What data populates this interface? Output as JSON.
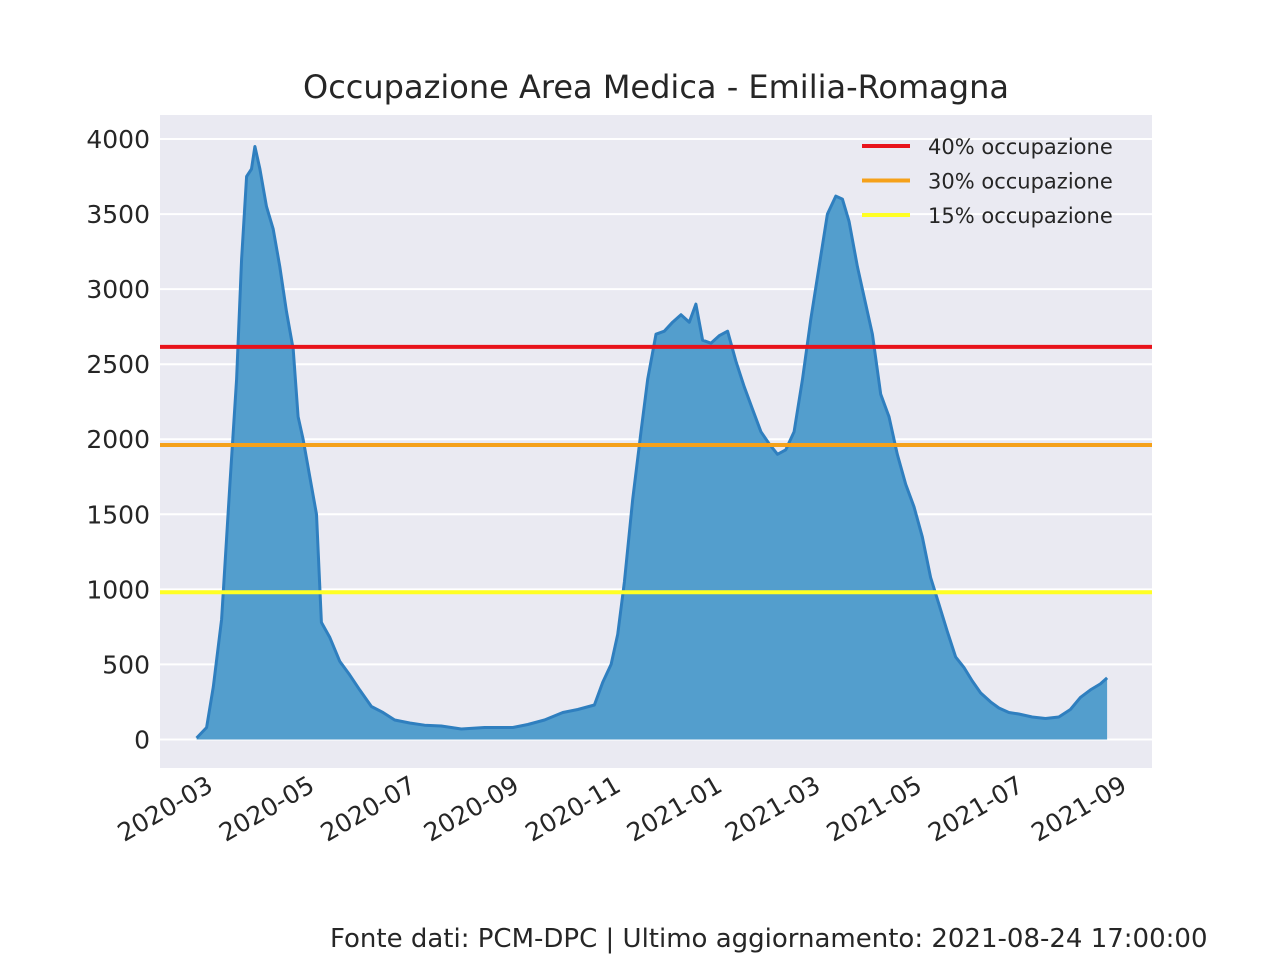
{
  "chart_data": {
    "type": "area",
    "title": "Occupazione Area Medica - Emilia-Romagna",
    "xlabel": "",
    "ylabel": "",
    "x_range": [
      "2020-02-02",
      "2021-09-20"
    ],
    "ylim": [
      -190,
      4160
    ],
    "x_ticks": [
      "2020-03",
      "2020-05",
      "2020-07",
      "2020-09",
      "2020-11",
      "2021-01",
      "2021-03",
      "2021-05",
      "2021-07",
      "2021-09"
    ],
    "y_ticks": [
      0,
      500,
      1000,
      1500,
      2000,
      2500,
      3000,
      3500,
      4000
    ],
    "grid": true,
    "legend_position": "top-right",
    "series": [
      {
        "name": "",
        "color": "#2f7fbf",
        "fill": "#539ecd",
        "points": [
          [
            "2020-02-24",
            10
          ],
          [
            "2020-03-01",
            80
          ],
          [
            "2020-03-05",
            350
          ],
          [
            "2020-03-10",
            800
          ],
          [
            "2020-03-15",
            1700
          ],
          [
            "2020-03-19",
            2400
          ],
          [
            "2020-03-22",
            3200
          ],
          [
            "2020-03-25",
            3750
          ],
          [
            "2020-03-28",
            3800
          ],
          [
            "2020-03-30",
            3950
          ],
          [
            "2020-04-02",
            3800
          ],
          [
            "2020-04-06",
            3550
          ],
          [
            "2020-04-10",
            3400
          ],
          [
            "2020-04-14",
            3150
          ],
          [
            "2020-04-18",
            2850
          ],
          [
            "2020-04-22",
            2600
          ],
          [
            "2020-04-25",
            2150
          ],
          [
            "2020-04-28",
            2000
          ],
          [
            "2020-05-02",
            1750
          ],
          [
            "2020-05-06",
            1500
          ],
          [
            "2020-05-09",
            780
          ],
          [
            "2020-05-14",
            680
          ],
          [
            "2020-05-20",
            520
          ],
          [
            "2020-05-26",
            430
          ],
          [
            "2020-06-01",
            330
          ],
          [
            "2020-06-08",
            220
          ],
          [
            "2020-06-15",
            180
          ],
          [
            "2020-06-22",
            130
          ],
          [
            "2020-07-01",
            110
          ],
          [
            "2020-07-10",
            95
          ],
          [
            "2020-07-20",
            90
          ],
          [
            "2020-08-01",
            70
          ],
          [
            "2020-08-15",
            80
          ],
          [
            "2020-09-01",
            80
          ],
          [
            "2020-09-10",
            100
          ],
          [
            "2020-09-20",
            130
          ],
          [
            "2020-10-01",
            180
          ],
          [
            "2020-10-10",
            200
          ],
          [
            "2020-10-20",
            230
          ],
          [
            "2020-10-25",
            380
          ],
          [
            "2020-10-30",
            500
          ],
          [
            "2020-11-03",
            700
          ],
          [
            "2020-11-07",
            1050
          ],
          [
            "2020-11-12",
            1600
          ],
          [
            "2020-11-17",
            2050
          ],
          [
            "2020-11-21",
            2400
          ],
          [
            "2020-11-26",
            2700
          ],
          [
            "2020-12-01",
            2720
          ],
          [
            "2020-12-06",
            2780
          ],
          [
            "2020-12-11",
            2830
          ],
          [
            "2020-12-16",
            2780
          ],
          [
            "2020-12-20",
            2900
          ],
          [
            "2020-12-24",
            2660
          ],
          [
            "2020-12-29",
            2640
          ],
          [
            "2021-01-03",
            2690
          ],
          [
            "2021-01-08",
            2720
          ],
          [
            "2021-01-13",
            2520
          ],
          [
            "2021-01-18",
            2350
          ],
          [
            "2021-01-23",
            2200
          ],
          [
            "2021-01-28",
            2050
          ],
          [
            "2021-02-02",
            1970
          ],
          [
            "2021-02-07",
            1900
          ],
          [
            "2021-02-12",
            1930
          ],
          [
            "2021-02-17",
            2050
          ],
          [
            "2021-02-22",
            2400
          ],
          [
            "2021-02-27",
            2800
          ],
          [
            "2021-03-04",
            3150
          ],
          [
            "2021-03-09",
            3500
          ],
          [
            "2021-03-14",
            3620
          ],
          [
            "2021-03-18",
            3600
          ],
          [
            "2021-03-22",
            3450
          ],
          [
            "2021-03-27",
            3150
          ],
          [
            "2021-04-01",
            2900
          ],
          [
            "2021-04-05",
            2700
          ],
          [
            "2021-04-10",
            2300
          ],
          [
            "2021-04-15",
            2150
          ],
          [
            "2021-04-20",
            1900
          ],
          [
            "2021-04-25",
            1700
          ],
          [
            "2021-04-30",
            1550
          ],
          [
            "2021-05-05",
            1350
          ],
          [
            "2021-05-10",
            1080
          ],
          [
            "2021-05-15",
            900
          ],
          [
            "2021-05-20",
            720
          ],
          [
            "2021-05-25",
            550
          ],
          [
            "2021-05-30",
            480
          ],
          [
            "2021-06-04",
            390
          ],
          [
            "2021-06-09",
            310
          ],
          [
            "2021-06-15",
            250
          ],
          [
            "2021-06-20",
            210
          ],
          [
            "2021-06-26",
            180
          ],
          [
            "2021-07-02",
            170
          ],
          [
            "2021-07-10",
            150
          ],
          [
            "2021-07-18",
            140
          ],
          [
            "2021-07-26",
            150
          ],
          [
            "2021-08-02",
            200
          ],
          [
            "2021-08-08",
            280
          ],
          [
            "2021-08-14",
            330
          ],
          [
            "2021-08-20",
            370
          ],
          [
            "2021-08-24",
            410
          ]
        ]
      }
    ],
    "thresholds": [
      {
        "name": "40% occupazione",
        "value": 2615,
        "color": "#e8131b"
      },
      {
        "name": "30% occupazione",
        "value": 1962,
        "color": "#f5a11a"
      },
      {
        "name": "15% occupazione",
        "value": 981,
        "color": "#ffff24"
      }
    ]
  },
  "footer": "Fonte dati: PCM-DPC | Ultimo aggiornamento: 2021-08-24 17:00:00"
}
